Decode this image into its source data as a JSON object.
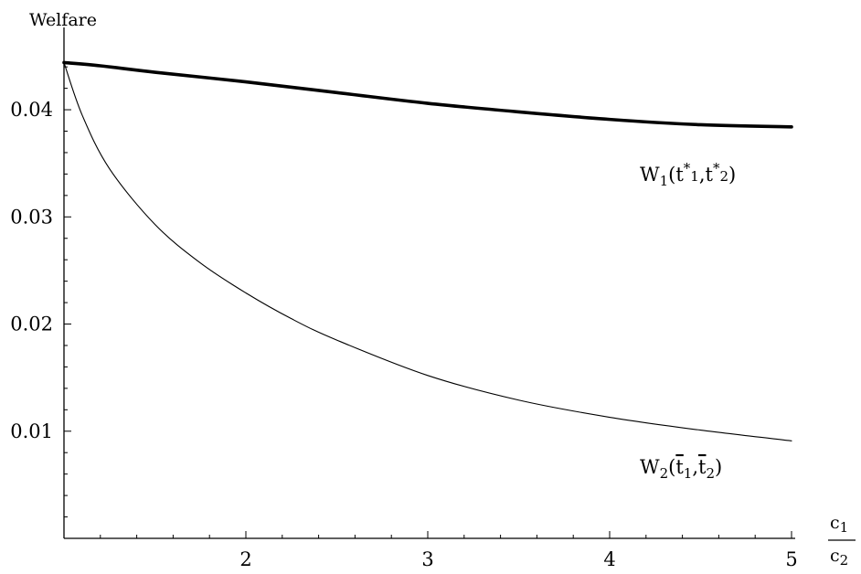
{
  "chart_data": {
    "type": "line",
    "title": "",
    "ylabel": "Welfare",
    "xlabel_numerator": "c",
    "xlabel_numerator_sub": "1",
    "xlabel_denominator": "c",
    "xlabel_denominator_sub": "2",
    "xlim": [
      1,
      5
    ],
    "ylim": [
      0,
      0.047
    ],
    "x_ticks": [
      {
        "value": 2,
        "label": "2"
      },
      {
        "value": 3,
        "label": "3"
      },
      {
        "value": 4,
        "label": "4"
      },
      {
        "value": 5,
        "label": "5"
      }
    ],
    "y_ticks": [
      {
        "value": 0.01,
        "label": "0.01"
      },
      {
        "value": 0.02,
        "label": "0.02"
      },
      {
        "value": 0.03,
        "label": "0.03"
      },
      {
        "value": 0.04,
        "label": "0.04"
      }
    ],
    "grid": false,
    "legend": "none",
    "series": [
      {
        "label_parts": {
          "base": "W",
          "base_sub": "1",
          "open": "(t",
          "sup1": "*",
          "sub1": "1",
          "comma": ",t",
          "sup2": "*",
          "sub2": "2",
          "close": ")"
        },
        "line_color": "#000000",
        "line_weight": "thick",
        "x": [
          1.0,
          1.2,
          1.5,
          2.0,
          2.5,
          3.0,
          3.5,
          4.0,
          4.5,
          5.0
        ],
        "y": [
          0.0444,
          0.0441,
          0.0435,
          0.0426,
          0.0416,
          0.0406,
          0.0398,
          0.0391,
          0.0386,
          0.0384
        ]
      },
      {
        "label_parts": {
          "base": "W",
          "base_sub": "2",
          "open": "(",
          "t1": "t",
          "sub1": "1",
          "comma": ",",
          "t2": "t",
          "sub2": "2",
          "close": ")"
        },
        "line_color": "#000000",
        "line_weight": "thin",
        "x": [
          1.0,
          1.1,
          1.25,
          1.5,
          1.75,
          2.0,
          2.25,
          2.5,
          3.0,
          3.5,
          4.0,
          4.5,
          5.0
        ],
        "y": [
          0.0444,
          0.0395,
          0.0345,
          0.0293,
          0.0257,
          0.0229,
          0.0205,
          0.0185,
          0.0152,
          0.0129,
          0.0113,
          0.0101,
          0.0091
        ]
      }
    ]
  }
}
